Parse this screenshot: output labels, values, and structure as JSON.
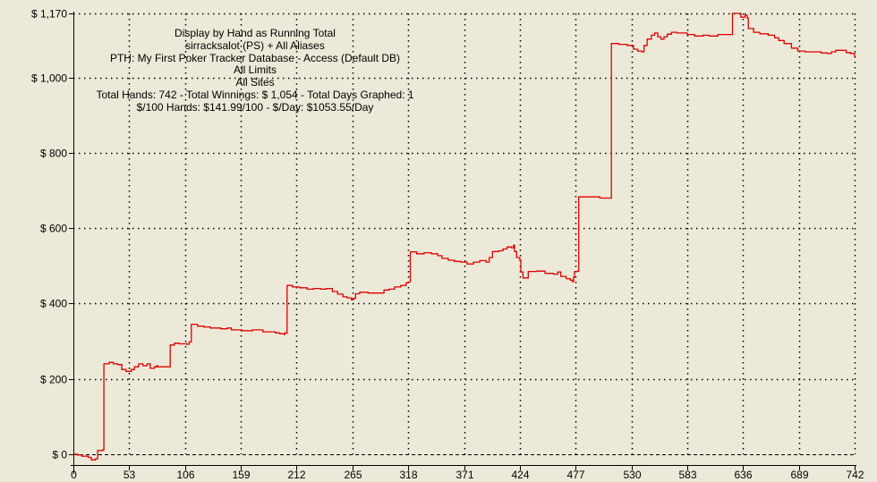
{
  "header": {
    "lines": [
      "Display by Hand as Running Total",
      "sirracksalot (PS) + All Aliases",
      "PTH: My First Poker Tracker Database - Access (Default DB)",
      "All Limits",
      "All Sites",
      "Total Hands: 742 - Total Winnings: $ 1,054 - Total Days Graphed: 1",
      "$/100 Hands: $141.99/100 - $/Day: $1053.55/Day"
    ]
  },
  "colors": {
    "background": "#ece9d8",
    "line": "#e00000",
    "axis": "#000000",
    "grid": "#000000"
  },
  "chart_data": {
    "type": "line",
    "title": "",
    "xlabel": "",
    "ylabel": "",
    "xlim": [
      0,
      742
    ],
    "ylim": [
      0,
      1170
    ],
    "x_ticks": [
      0,
      53,
      106,
      159,
      212,
      265,
      318,
      371,
      424,
      477,
      530,
      583,
      636,
      689,
      742
    ],
    "y_ticks": [
      0,
      200,
      400,
      600,
      800,
      1000,
      1170
    ],
    "y_tick_labels": [
      "$ 0",
      "$ 200",
      "$ 400",
      "$ 600",
      "$ 800",
      "$ 1,000",
      "$ 1,170"
    ],
    "grid": true,
    "legend": "none",
    "series": [
      {
        "values": [
          [
            0,
            0
          ],
          [
            4,
            -2
          ],
          [
            8,
            -5
          ],
          [
            14,
            -8
          ],
          [
            17,
            -15
          ],
          [
            21,
            -12
          ],
          [
            23,
            10
          ],
          [
            28,
            12
          ],
          [
            29,
            240
          ],
          [
            34,
            244
          ],
          [
            38,
            240
          ],
          [
            42,
            238
          ],
          [
            46,
            225
          ],
          [
            50,
            220
          ],
          [
            55,
            225
          ],
          [
            58,
            232
          ],
          [
            62,
            240
          ],
          [
            66,
            235
          ],
          [
            70,
            240
          ],
          [
            73,
            228
          ],
          [
            77,
            232
          ],
          [
            79,
            235
          ],
          [
            80,
            232
          ],
          [
            90,
            232
          ],
          [
            92,
            290
          ],
          [
            96,
            295
          ],
          [
            100,
            293
          ],
          [
            108,
            292
          ],
          [
            110,
            298
          ],
          [
            112,
            345
          ],
          [
            118,
            340
          ],
          [
            124,
            338
          ],
          [
            130,
            335
          ],
          [
            140,
            333
          ],
          [
            146,
            335
          ],
          [
            150,
            330
          ],
          [
            160,
            328
          ],
          [
            170,
            330
          ],
          [
            180,
            325
          ],
          [
            192,
            322
          ],
          [
            196,
            320
          ],
          [
            200,
            318
          ],
          [
            201,
            322
          ],
          [
            203,
            448
          ],
          [
            208,
            444
          ],
          [
            215,
            442
          ],
          [
            222,
            438
          ],
          [
            228,
            440
          ],
          [
            235,
            438
          ],
          [
            240,
            440
          ],
          [
            246,
            432
          ],
          [
            251,
            425
          ],
          [
            256,
            418
          ],
          [
            260,
            415
          ],
          [
            264,
            410
          ],
          [
            266,
            414
          ],
          [
            268,
            426
          ],
          [
            272,
            430
          ],
          [
            280,
            428
          ],
          [
            290,
            428
          ],
          [
            295,
            436
          ],
          [
            300,
            438
          ],
          [
            305,
            444
          ],
          [
            311,
            448
          ],
          [
            316,
            455
          ],
          [
            318,
            457
          ],
          [
            320,
            537
          ],
          [
            326,
            532
          ],
          [
            333,
            535
          ],
          [
            340,
            532
          ],
          [
            346,
            527
          ],
          [
            350,
            520
          ],
          [
            356,
            515
          ],
          [
            362,
            512
          ],
          [
            368,
            510
          ],
          [
            374,
            505
          ],
          [
            380,
            510
          ],
          [
            386,
            514
          ],
          [
            392,
            510
          ],
          [
            395,
            522
          ],
          [
            398,
            538
          ],
          [
            404,
            540
          ],
          [
            408,
            545
          ],
          [
            412,
            550
          ],
          [
            416,
            548
          ],
          [
            418,
            555
          ],
          [
            419,
            538
          ],
          [
            421,
            522
          ],
          [
            424,
            515
          ],
          [
            425,
            484
          ],
          [
            427,
            468
          ],
          [
            430,
            468
          ],
          [
            432,
            485
          ],
          [
            440,
            486
          ],
          [
            448,
            480
          ],
          [
            456,
            478
          ],
          [
            460,
            484
          ],
          [
            463,
            472
          ],
          [
            468,
            466
          ],
          [
            472,
            462
          ],
          [
            474,
            458
          ],
          [
            475,
            470
          ],
          [
            476,
            485
          ],
          [
            479,
            486
          ],
          [
            480,
            683
          ],
          [
            487,
            683
          ],
          [
            500,
            680
          ],
          [
            510,
            680
          ],
          [
            511,
            1090
          ],
          [
            518,
            1088
          ],
          [
            526,
            1085
          ],
          [
            532,
            1075
          ],
          [
            536,
            1070
          ],
          [
            540,
            1068
          ],
          [
            542,
            1085
          ],
          [
            545,
            1102
          ],
          [
            549,
            1112
          ],
          [
            552,
            1118
          ],
          [
            555,
            1108
          ],
          [
            558,
            1102
          ],
          [
            561,
            1108
          ],
          [
            564,
            1115
          ],
          [
            568,
            1120
          ],
          [
            573,
            1118
          ],
          [
            578,
            1118
          ],
          [
            583,
            1114
          ],
          [
            590,
            1110
          ],
          [
            598,
            1112
          ],
          [
            604,
            1110
          ],
          [
            612,
            1114
          ],
          [
            620,
            1114
          ],
          [
            624,
            1114
          ],
          [
            626,
            1170
          ],
          [
            630,
            1170
          ],
          [
            634,
            1160
          ],
          [
            638,
            1165
          ],
          [
            640,
            1158
          ],
          [
            641,
            1130
          ],
          [
            646,
            1120
          ],
          [
            652,
            1116
          ],
          [
            660,
            1112
          ],
          [
            666,
            1105
          ],
          [
            670,
            1098
          ],
          [
            675,
            1090
          ],
          [
            682,
            1078
          ],
          [
            688,
            1070
          ],
          [
            695,
            1068
          ],
          [
            702,
            1068
          ],
          [
            710,
            1065
          ],
          [
            716,
            1064
          ],
          [
            720,
            1068
          ],
          [
            724,
            1072
          ],
          [
            730,
            1072
          ],
          [
            734,
            1066
          ],
          [
            738,
            1064
          ],
          [
            742,
            1054
          ]
        ]
      }
    ]
  }
}
